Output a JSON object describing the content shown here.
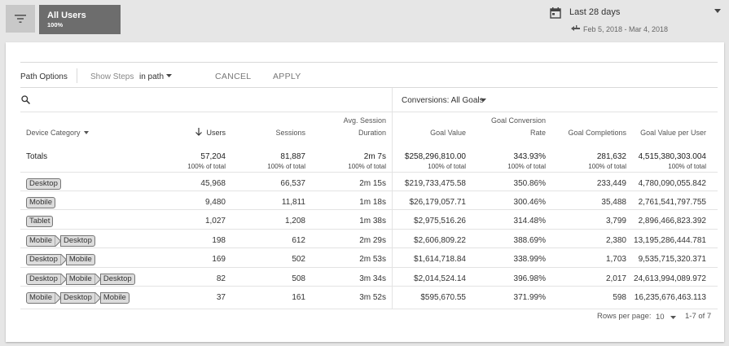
{
  "segment": {
    "name": "All Users",
    "percent": "100%"
  },
  "date": {
    "range_label": "Last 28 days",
    "dates": "Feb 5, 2018 - Mar 4, 2018"
  },
  "toolbar": {
    "path_options": "Path Options",
    "show_steps": "Show Steps",
    "in_path": "in path",
    "cancel": "CANCEL",
    "apply": "APPLY"
  },
  "conversions": "Conversions: All Goals",
  "columns": {
    "device": "Device Category",
    "users": "Users",
    "sessions": "Sessions",
    "avg_line1": "Avg. Session",
    "avg_line2": "Duration",
    "goal_value": "Goal Value",
    "gcr_line1": "Goal Conversion",
    "gcr_line2": "Rate",
    "goal_completions": "Goal Completions",
    "gvpu": "Goal Value per User"
  },
  "totals": {
    "label": "Totals",
    "users": "57,204",
    "sessions": "81,887",
    "avg": "2m 7s",
    "goal_value": "$258,296,810.00",
    "gcr": "343.93%",
    "completions": "281,632",
    "gvpu": "4,515,380,303.004",
    "sub": "100% of total"
  },
  "rows": [
    {
      "path": [
        "Desktop"
      ],
      "users": "45,968",
      "sessions": "66,537",
      "avg": "2m 15s",
      "goal_value": "$219,733,475.58",
      "gcr": "350.86%",
      "completions": "233,449",
      "gvpu": "4,780,090,055.842"
    },
    {
      "path": [
        "Mobile"
      ],
      "users": "9,480",
      "sessions": "11,811",
      "avg": "1m 18s",
      "goal_value": "$26,179,057.71",
      "gcr": "300.46%",
      "completions": "35,488",
      "gvpu": "2,761,541,797.755"
    },
    {
      "path": [
        "Tablet"
      ],
      "users": "1,027",
      "sessions": "1,208",
      "avg": "1m 38s",
      "goal_value": "$2,975,516.26",
      "gcr": "314.48%",
      "completions": "3,799",
      "gvpu": "2,896,466,823.392"
    },
    {
      "path": [
        "Mobile",
        "Desktop"
      ],
      "users": "198",
      "sessions": "612",
      "avg": "2m 29s",
      "goal_value": "$2,606,809.22",
      "gcr": "388.69%",
      "completions": "2,380",
      "gvpu": "13,195,286,444.781"
    },
    {
      "path": [
        "Desktop",
        "Mobile"
      ],
      "users": "169",
      "sessions": "502",
      "avg": "2m 53s",
      "goal_value": "$1,614,718.84",
      "gcr": "338.99%",
      "completions": "1,703",
      "gvpu": "9,535,715,320.371"
    },
    {
      "path": [
        "Desktop",
        "Mobile",
        "Desktop"
      ],
      "users": "82",
      "sessions": "508",
      "avg": "3m 34s",
      "goal_value": "$2,014,524.14",
      "gcr": "396.98%",
      "completions": "2,017",
      "gvpu": "24,613,994,089.972"
    },
    {
      "path": [
        "Mobile",
        "Desktop",
        "Mobile"
      ],
      "users": "37",
      "sessions": "161",
      "avg": "3m 52s",
      "goal_value": "$595,670.55",
      "gcr": "371.99%",
      "completions": "598",
      "gvpu": "16,235,676,463.113"
    }
  ],
  "footer": {
    "rows_per_page_label": "Rows per page:",
    "rows_per_page_value": "10",
    "page_range": "1-7 of 7"
  }
}
